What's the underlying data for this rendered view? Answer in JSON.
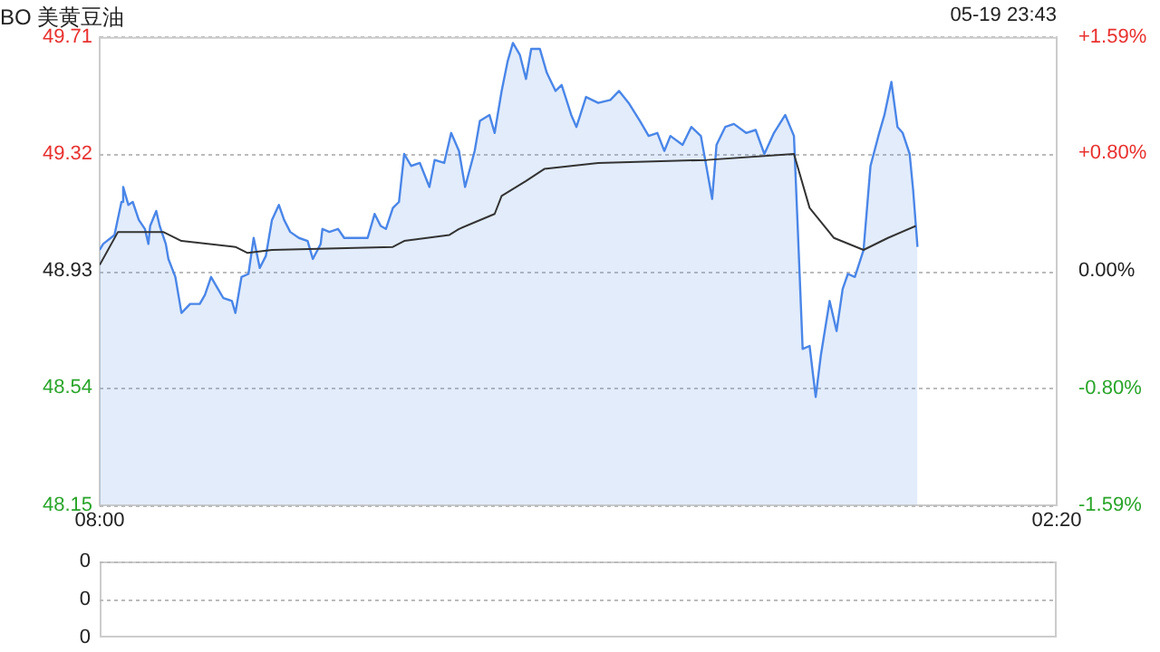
{
  "chart_data": [
    {
      "type": "line",
      "title": "BO 美黄豆油",
      "annotations": [
        "05-19 23:43"
      ],
      "xlim": [
        "--05-19T08:00",
        "--05-20T02:20"
      ],
      "xticks": [
        {
          "value": "--05-19T08:00",
          "label": "08:00"
        },
        {
          "value": "--05-20T02:20",
          "label": "02:20"
        }
      ],
      "ylim": [
        48.15,
        49.71
      ],
      "yticks": [
        48.15,
        48.54,
        48.93,
        49.32,
        49.71
      ],
      "y2lim": [
        -1.59,
        1.59
      ],
      "y2ticks": [
        {
          "value": -1.59,
          "label": "-1.59%"
        },
        {
          "value": -0.8,
          "label": "-0.80%"
        },
        {
          "value": 0,
          "label": "0.00%"
        },
        {
          "value": 0.8,
          "label": "+0.80%"
        },
        {
          "value": 1.59,
          "label": "+1.59%"
        }
      ],
      "grid": "y",
      "legend": false,
      "marker": "none",
      "series": [
        {
          "type": "area",
          "color": "#4a86e8",
          "x": [
            "--05-19T08:00",
            "--05-19T08:04",
            "--05-19T08:17",
            "--05-19T08:25",
            "--05-19T08:27",
            "--05-19T08:33",
            "--05-19T08:38",
            "--05-19T08:45",
            "--05-19T08:52",
            "--05-19T08:56",
            "--05-19T08:58",
            "--05-19T09:05",
            "--05-19T09:09",
            "--05-19T09:16",
            "--05-19T09:19",
            "--05-19T09:27",
            "--05-19T09:34",
            "--05-19T09:44",
            "--05-19T09:55",
            "--05-19T10:01",
            "--05-19T10:08",
            "--05-19T10:16",
            "--05-19T10:22",
            "--05-19T10:32",
            "--05-19T10:36",
            "--05-19T10:43",
            "--05-19T10:51",
            "--05-19T10:57",
            "--05-19T11:04",
            "--05-19T11:11",
            "--05-19T11:18",
            "--05-19T11:26",
            "--05-19T11:32",
            "--05-19T11:39",
            "--05-19T11:49",
            "--05-19T11:59",
            "--05-19T12:05",
            "--05-19T12:14",
            "--05-19T12:16",
            "--05-19T12:24",
            "--05-19T12:34",
            "--05-19T12:41",
            "--05-19T13:08",
            "--05-19T13:16",
            "--05-19T13:23",
            "--05-19T13:29",
            "--05-19T13:37",
            "--05-19T13:44",
            "--05-19T13:50",
            "--05-19T13:58",
            "--05-19T14:08",
            "--05-19T14:19",
            "--05-19T14:25",
            "--05-19T14:36",
            "--05-19T14:44",
            "--05-19T14:53",
            "--05-19T15:00",
            "--05-19T15:11",
            "--05-19T15:17",
            "--05-19T15:28",
            "--05-19T15:34",
            "--05-19T15:42",
            "--05-19T15:49",
            "--05-19T15:55",
            "--05-19T16:03",
            "--05-19T16:10",
            "--05-19T16:16",
            "--05-19T16:26",
            "--05-19T16:34",
            "--05-19T16:44",
            "--05-19T16:51",
            "--05-19T17:02",
            "--05-19T17:08",
            "--05-19T17:19",
            "--05-19T17:33",
            "--05-19T17:47",
            "--05-19T17:57",
            "--05-19T18:08",
            "--05-19T18:21",
            "--05-19T18:31",
            "--05-19T18:41",
            "--05-19T18:49",
            "--05-19T18:56",
            "--05-19T19:10",
            "--05-19T19:20",
            "--05-19T19:31",
            "--05-19T19:36",
            "--05-19T19:44",
            "--05-19T19:49",
            "--05-19T19:59",
            "--05-19T20:09",
            "--05-19T20:23",
            "--05-19T20:34",
            "--05-19T20:44",
            "--05-19T20:55",
            "--05-19T21:08",
            "--05-19T21:18",
            "--05-19T21:22",
            "--05-19T21:28",
            "--05-19T21:36",
            "--05-19T21:43",
            "--05-19T21:49",
            "--05-19T21:59",
            "--05-19T22:07",
            "--05-19T22:14",
            "--05-19T22:20",
            "--05-19T22:28",
            "--05-19T22:38",
            "--05-19T22:46",
            "--05-19T22:56",
            "--05-19T23:02",
            "--05-19T23:10",
            "--05-19T23:17",
            "--05-19T23:23",
            "--05-19T23:31",
            "--05-19T23:35",
            "--05-19T23:40"
          ],
          "values": [
            49.0,
            49.02,
            49.05,
            49.16,
            49.21,
            49.15,
            49.16,
            49.1,
            49.07,
            49.02,
            49.08,
            49.13,
            49.08,
            49.02,
            48.97,
            48.91,
            48.79,
            48.82,
            48.82,
            48.85,
            48.91,
            48.87,
            48.84,
            48.83,
            48.79,
            48.91,
            48.92,
            49.04,
            48.94,
            48.98,
            49.1,
            49.15,
            49.1,
            49.06,
            49.04,
            49.03,
            48.97,
            49.02,
            49.07,
            49.06,
            49.07,
            49.04,
            49.04,
            49.12,
            49.08,
            49.07,
            49.14,
            49.16,
            49.32,
            49.28,
            49.29,
            49.21,
            49.3,
            49.29,
            49.39,
            49.33,
            49.21,
            49.33,
            49.43,
            49.45,
            49.39,
            49.53,
            49.63,
            49.69,
            49.65,
            49.57,
            49.67,
            49.67,
            49.59,
            49.53,
            49.55,
            49.45,
            49.41,
            49.51,
            49.49,
            49.5,
            49.53,
            49.49,
            49.43,
            49.38,
            49.39,
            49.33,
            49.38,
            49.35,
            49.41,
            49.38,
            49.3,
            49.17,
            49.35,
            49.41,
            49.42,
            49.39,
            49.4,
            49.32,
            49.39,
            49.45,
            49.38,
            49.1,
            48.67,
            48.68,
            48.51,
            48.65,
            48.83,
            48.73,
            48.87,
            48.92,
            48.91,
            49.0,
            49.28,
            49.39,
            49.45,
            49.56,
            49.41,
            49.39,
            49.32,
            49.2,
            49.01
          ]
        },
        {
          "type": "line",
          "color": "#333333",
          "x": [
            "--05-19T08:00",
            "--05-19T08:21",
            "--05-19T09:13",
            "--05-19T09:34",
            "--05-19T10:36",
            "--05-19T10:50",
            "--05-19T11:18",
            "--05-19T13:37",
            "--05-19T13:50",
            "--05-19T14:42",
            "--05-19T14:53",
            "--05-19T15:34",
            "--05-19T15:42",
            "--05-19T16:10",
            "--05-19T16:31",
            "--05-19T17:33",
            "--05-19T19:38",
            "--05-19T21:18",
            "--05-19T21:36",
            "--05-19T22:04",
            "--05-19T22:38",
            "--05-19T23:06",
            "--05-19T23:38"
          ],
          "values": [
            48.95,
            49.06,
            49.06,
            49.03,
            49.01,
            48.99,
            49.0,
            49.01,
            49.03,
            49.05,
            49.07,
            49.12,
            49.18,
            49.23,
            49.27,
            49.29,
            49.3,
            49.32,
            49.14,
            49.04,
            49.0,
            49.04,
            49.08
          ]
        }
      ]
    },
    {
      "type": "other",
      "annotations": [
        "0",
        "0",
        "0"
      ]
    }
  ]
}
